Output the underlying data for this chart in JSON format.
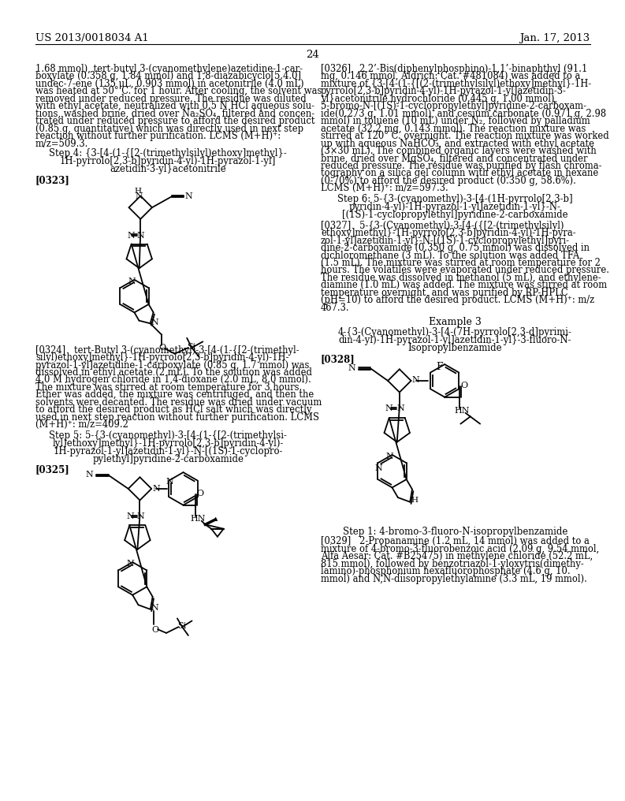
{
  "background_color": "#ffffff",
  "header_left": "US 2013/0018034 A1",
  "header_right": "Jan. 17, 2013",
  "page_number": "24",
  "left_col_text": [
    "1.68 mmol), tert-butyl 3-(cyanomethylene)azetidine-1-car-",
    "boxylate (0.358 g, 1.84 mmol) and 1,8-diazabicyclo[5.4.0]",
    "undec-7-ene (135 μL, 0.903 mmol) in acetonitrile (4.0 mL)",
    "was heated at 50° C. for 1 hour. After cooling, the solvent was",
    "removed under reduced pressure. The residue was diluted",
    "with ethyl acetate, neutralized with 0.5 N HCl aqueous solu-",
    "tions, washed brine, dried over Na₂SO₄, filtered and concen-",
    "trated under reduced pressure to afford the desired product",
    "(0.85 g, quantitative) which was directly used in next step",
    "reaction without further purification. LCMS (M+H)⁺:",
    "m/z=509.3."
  ],
  "step4_title_lines": [
    "Step 4: {3-[4-(1-{[2-(trimethylsilyl)ethoxy]methyl}-",
    "1H-pyrrolo[2,3-b]pyridin-4-yl)-1H-pyrazol-1-yl]",
    "azetidin-3-yl}acetonitrile"
  ],
  "tag_0323": "[0323]",
  "para_0324_lines": [
    "[0324]   tert-Butyl 3-(cyanomethyl)-3-[4-(1-{[2-(trimethyl-",
    "silyl)ethoxy]methyl}-1H-pyrrolo[2,3-b]pyridin-4-yl)-1H-",
    "pyrazol-1-yl]azetidine-1-carboxylate (0.85 g, 1.7 mmol) was",
    "dissolved in ethyl acetate (2 mL). To the solution was added",
    "4.0 M hydrogen chloride in 1,4-dioxane (2.0 mL, 8.0 mmol).",
    "The mixture was stirred at room temperature for 3 hours.",
    "Ether was added, the mixture was centrifuged, and then the",
    "solvents were decanted. The residue was dried under vacuum",
    "to afford the desired product as HCl salt which was directly",
    "used in next step reaction without further purification. LCMS",
    "(M+H)⁺: m/z=409.2"
  ],
  "step5_title_lines": [
    "Step 5: 5-{3-(cyanomethyl)-3-[4-(1-{[2-(trimethylsi-",
    "lyl)ethoxy]methyl}-1H-pyrrolo[2,3-b]pyridin-4-yl)-",
    "1H-pyrazol-1-yl]azetidin-1-yl}-N-[(1S)-1-cyclopro-",
    "pylethyl]pyridine-2-carboxamide"
  ],
  "tag_0325": "[0325]",
  "right_col_text_top": [
    "[0326]   2,2’-Bis(diphenylphosphino)-1,1’-binaphthyl (91.1",
    "mg, 0.146 mmol, Aldrich: Cat. #481084) was added to a",
    "mixture of {3-[4-(1-{[(2-(trimethylsilyl)ethoxy]methyl}-1H-",
    "pyrrolo[2,3-b]pyridin-4-yl)-1H-pyrazol-1-yl]azetidin-3-",
    "yl}acetonitrile hydrochloride (0.445 g, 1.00 mmol),",
    "5-bromo-N-[(1S)-1-cyclopropylethyl]pyridine-2-carboxam-",
    "ide(0.273 g, 1.01 mmol), and cesium carbonate (0.971 g, 2.98",
    "mmol) in toluene (10 mL) under N₂, followed by palladium",
    "acetate (32.2 mg, 0.143 mmol). The reaction mixture was",
    "stirred at 120° C. overnight. The reaction mixture was worked",
    "up with aqueous NaHCO₃, and extracted with ethyl acetate",
    "(3×30 mL). The combined organic layers were washed with",
    "brine, dried over MgSO₄, filtered and concentrated under",
    "reduced pressure. The residue was purified by flash chroma-",
    "tography on a silica gel column with ethyl acetate in hexane",
    "(0-70%) to afford the desired product (0.350 g, 58.6%).",
    "LCMS (M+H)⁺: m/z=597.3."
  ],
  "step6_title_lines": [
    "Step 6: 5-{3-(cyanomethyl)-3-[4-(1H-pyrrolo[2,3-b]",
    "pyridin-4-yl)-1H-pyrazol-1-yl]azetidin-1-yl}-N-",
    "[(1S)-1-cyclopropylethyl]pyridine-2-carboxamide"
  ],
  "para_0327_lines": [
    "[0327]   5-{3-(Cyanomethyl)-3-[4-({[2-(trimethylsilyl)",
    "ethoxy]methyl}-1H-pyrrolo[2,3-b]pyridin-4-yl)-1H-pyra-",
    "zol-1-yl]azetidin-1-yl}-N-[(1S)-1-cyclopropylethyl]pyri-",
    "dine-2-carboxamide (0.350 g, 0.75 mmol) was dissolved in",
    "dichloromethane (3 mL). To the solution was added TFA",
    "(1.5 mL). The mixture was stirred at room temperature for 2",
    "hours. The volatiles were evaporated under reduced pressure.",
    "The residue was dissolved in methanol (5 mL), and ethylene-",
    "diamine (1.0 mL) was added. The mixture was stirred at room",
    "temperature overnight, and was purified by RP-HPLC",
    "(pH=10) to afford the desired product. LCMS (M+H)⁺: m/z",
    "467.3."
  ],
  "example3_title": "Example 3",
  "example3_subtitle_lines": [
    "4-{3-(Cyanomethyl)-3-[4-(7H-pyrrolo[2,3-d]pyrimi-",
    "din-4-yl)-1H-pyrazol-1-yl]azetidin-1-yl}-3-fluoro-N-",
    "Isopropylbenzamide"
  ],
  "tag_0328": "[0328]",
  "step1_right_title": "Step 1: 4-bromo-3-fluoro-N-isopropylbenzamide",
  "para_0329_lines": [
    "[0329]   2-Propanamine (1.2 mL, 14 mmol) was added to a",
    "mixture of 4-bromo-3-fluorobenzoic acid (2.09 g, 9.54 mmol,",
    "Alfa Aesar: Cat. #B25475) in methylene chloride (52.2 mL,",
    "815 mmol), followed by benzotriazol-1-yloxytris(dimethy-",
    "lamino)-phosphonium hexafluorophosphate (4.6 g, 10.",
    "mmol) and N,N-diisopropylethylamine (3.3 mL, 19 mmol)."
  ]
}
